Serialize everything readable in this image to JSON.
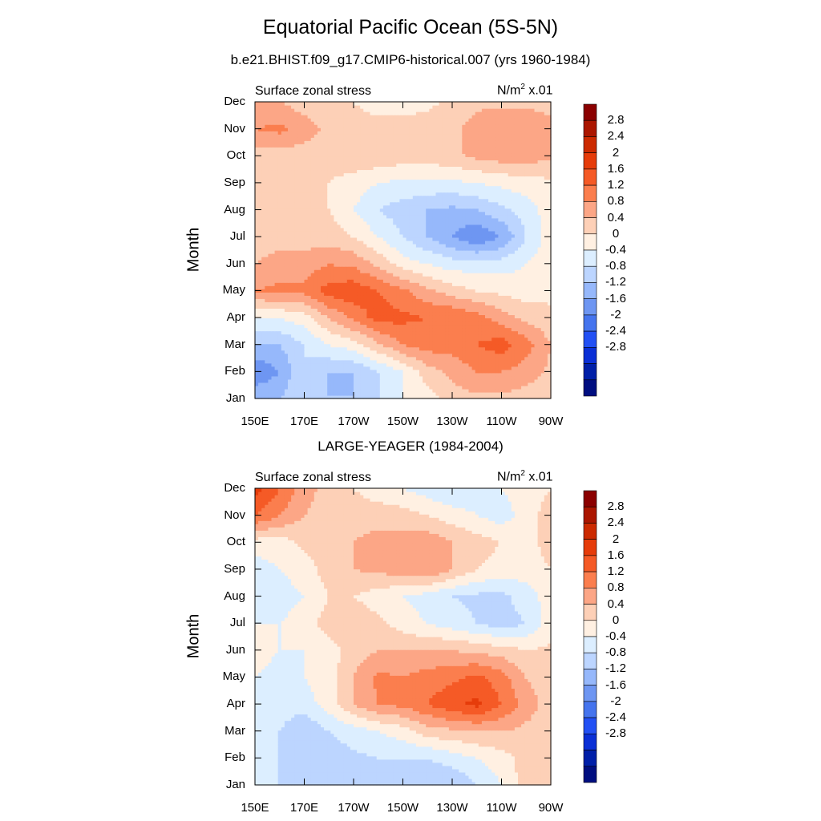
{
  "title": "Equatorial Pacific Ocean (5S-5N)",
  "chart_data": [
    {
      "type": "heatmap",
      "title": "b.e21.BHIST.f09_g17.CMIP6-historical.007 (yrs 1960-1984)",
      "left_label": "Surface zonal stress",
      "units_main": "N/m",
      "units_sup": "2",
      "units_scale": "x.01",
      "ylabel": "Month",
      "xlabel": "",
      "x_ticks": [
        "150E",
        "170E",
        "170W",
        "150W",
        "130W",
        "110W",
        "90W"
      ],
      "y_ticks": [
        "Jan",
        "Feb",
        "Mar",
        "Apr",
        "May",
        "Jun",
        "Jul",
        "Aug",
        "Sep",
        "Oct",
        "Nov",
        "Dec"
      ],
      "x": [
        150,
        160,
        170,
        180,
        190,
        200,
        210,
        220,
        230,
        240,
        250,
        260,
        270
      ],
      "y": [
        1,
        2,
        3,
        4,
        5,
        6,
        7,
        8,
        9,
        10,
        11,
        12
      ],
      "values": [
        [
          -1.2,
          -1.2,
          -0.8,
          -1.2,
          -1.2,
          -0.8,
          -0.4,
          -0.2,
          0.2,
          0.3,
          0.3,
          0.2,
          0.2
        ],
        [
          -2.0,
          -1.6,
          -0.8,
          -1.2,
          -1.2,
          -0.8,
          -0.4,
          0.2,
          0.5,
          0.8,
          0.8,
          0.6,
          0.3
        ],
        [
          -1.2,
          -1.2,
          -0.8,
          -0.4,
          -0.2,
          0.3,
          0.8,
          1.0,
          1.0,
          1.2,
          1.4,
          1.0,
          0.4
        ],
        [
          -0.4,
          -0.4,
          -0.2,
          0.4,
          0.9,
          1.4,
          1.3,
          1.2,
          1.2,
          1.0,
          0.6,
          0.3,
          0.1
        ],
        [
          0.8,
          0.9,
          0.9,
          1.4,
          1.5,
          1.2,
          0.9,
          0.5,
          0.2,
          0.0,
          -0.1,
          -0.2,
          -0.1
        ],
        [
          0.4,
          0.6,
          0.6,
          0.8,
          0.7,
          0.3,
          -0.2,
          -0.4,
          -0.6,
          -0.6,
          -0.6,
          -0.4,
          -0.1
        ],
        [
          0.2,
          0.2,
          0.2,
          0.2,
          0.0,
          -0.4,
          -0.8,
          -1.2,
          -1.6,
          -2.0,
          -1.6,
          -0.8,
          -0.2
        ],
        [
          0.0,
          0.2,
          0.2,
          0.0,
          -0.4,
          -0.8,
          -1.0,
          -1.2,
          -1.3,
          -1.2,
          -0.9,
          -0.6,
          -0.2
        ],
        [
          0.0,
          0.2,
          0.2,
          0.0,
          -0.2,
          -0.4,
          -0.5,
          -0.5,
          -0.5,
          -0.4,
          -0.3,
          -0.2,
          -0.1
        ],
        [
          0.2,
          0.2,
          0.2,
          0.2,
          0.3,
          0.3,
          0.2,
          0.2,
          0.3,
          0.5,
          0.6,
          0.6,
          0.5
        ],
        [
          0.8,
          0.9,
          0.6,
          0.3,
          0.2,
          0.2,
          0.2,
          0.2,
          0.3,
          0.6,
          0.8,
          0.8,
          0.6
        ],
        [
          0.4,
          0.4,
          0.2,
          0.1,
          0.0,
          -0.2,
          -0.2,
          -0.1,
          0.1,
          0.3,
          0.3,
          0.3,
          0.2
        ]
      ],
      "colorbar": {
        "labels": [
          "2.8",
          "2.4",
          "2",
          "1.6",
          "1.2",
          "0.8",
          "0.4",
          "0",
          "-0.4",
          "-0.8",
          "-1.2",
          "-1.6",
          "-2",
          "-2.4",
          "-2.8"
        ],
        "levels": [
          2.8,
          2.4,
          2.0,
          1.6,
          1.2,
          0.8,
          0.4,
          0.0,
          -0.4,
          -0.8,
          -1.2,
          -1.6,
          -2.0,
          -2.4,
          -2.8
        ],
        "colors": [
          "#8b0000",
          "#ab1600",
          "#cc2a00",
          "#e63c0a",
          "#f55a26",
          "#fb7e4e",
          "#fca686",
          "#fdd0b7",
          "#fff0e2",
          "#dceeff",
          "#bcd5ff",
          "#96b8fb",
          "#6e96f2",
          "#4574ee",
          "#2250f4",
          "#0a2fd6",
          "#001fa8",
          "#000e80"
        ]
      }
    },
    {
      "type": "heatmap",
      "title": "LARGE-YEAGER (1984-2004)",
      "left_label": "Surface zonal stress",
      "units_main": "N/m",
      "units_sup": "2",
      "units_scale": "x.01",
      "ylabel": "Month",
      "xlabel": "",
      "x_ticks": [
        "150E",
        "170E",
        "170W",
        "150W",
        "130W",
        "110W",
        "90W"
      ],
      "y_ticks": [
        "Jan",
        "Feb",
        "Mar",
        "Apr",
        "May",
        "Jun",
        "Jul",
        "Aug",
        "Sep",
        "Oct",
        "Nov",
        "Dec"
      ],
      "x": [
        150,
        160,
        170,
        180,
        190,
        200,
        210,
        220,
        230,
        240,
        250,
        260,
        270
      ],
      "y": [
        1,
        2,
        3,
        4,
        5,
        6,
        7,
        8,
        9,
        10,
        11,
        12
      ],
      "values": [
        [
          -0.4,
          -0.8,
          -0.8,
          -0.8,
          -1.0,
          -1.2,
          -1.2,
          -1.2,
          -1.2,
          -0.8,
          -0.4,
          0.2,
          0.2
        ],
        [
          -0.6,
          -0.8,
          -1.0,
          -1.0,
          -0.9,
          -0.8,
          -0.8,
          -0.8,
          -0.6,
          -0.4,
          -0.2,
          0.2,
          0.2
        ],
        [
          -0.6,
          -0.8,
          -1.2,
          -0.8,
          -0.6,
          -0.4,
          -0.2,
          0.2,
          0.3,
          0.4,
          0.4,
          0.3,
          0.2
        ],
        [
          -0.4,
          -0.6,
          -0.6,
          -0.2,
          0.4,
          0.8,
          0.9,
          1.2,
          1.5,
          1.7,
          1.2,
          0.6,
          0.2
        ],
        [
          -0.4,
          -0.6,
          -0.4,
          -0.2,
          0.4,
          0.9,
          0.8,
          1.0,
          1.1,
          1.3,
          1.0,
          0.4,
          0.2
        ],
        [
          -0.2,
          -0.4,
          -0.4,
          -0.2,
          0.2,
          0.4,
          0.4,
          0.4,
          0.4,
          0.3,
          0.2,
          0.0,
          0.1
        ],
        [
          -0.4,
          -0.4,
          -0.2,
          0.2,
          0.3,
          0.1,
          -0.2,
          -0.4,
          -0.6,
          -0.8,
          -1.0,
          -0.8,
          -0.2
        ],
        [
          -0.8,
          -0.6,
          -0.4,
          0.0,
          0.0,
          -0.2,
          -0.4,
          -0.6,
          -0.8,
          -0.9,
          -0.9,
          -0.6,
          -0.2
        ],
        [
          -0.6,
          -0.4,
          -0.2,
          0.2,
          0.4,
          0.5,
          0.6,
          0.8,
          0.4,
          0.0,
          -0.2,
          -0.2,
          0.0
        ],
        [
          -0.2,
          -0.2,
          0.1,
          0.2,
          0.4,
          0.6,
          0.6,
          0.7,
          0.4,
          0.2,
          0.0,
          -0.2,
          0.2
        ],
        [
          1.2,
          0.8,
          0.4,
          0.2,
          0.2,
          0.2,
          0.2,
          0.0,
          -0.2,
          -0.4,
          -0.6,
          -0.2,
          0.2
        ],
        [
          1.8,
          1.2,
          0.6,
          0.2,
          0.0,
          -0.2,
          -0.4,
          -0.6,
          -0.8,
          -0.6,
          -0.4,
          -0.2,
          0.0
        ]
      ],
      "colorbar": {
        "labels": [
          "2.8",
          "2.4",
          "2",
          "1.6",
          "1.2",
          "0.8",
          "0.4",
          "0",
          "-0.4",
          "-0.8",
          "-1.2",
          "-1.6",
          "-2",
          "-2.4",
          "-2.8"
        ],
        "levels": [
          2.8,
          2.4,
          2.0,
          1.6,
          1.2,
          0.8,
          0.4,
          0.0,
          -0.4,
          -0.8,
          -1.2,
          -1.6,
          -2.0,
          -2.4,
          -2.8
        ],
        "colors": [
          "#8b0000",
          "#ab1600",
          "#cc2a00",
          "#e63c0a",
          "#f55a26",
          "#fb7e4e",
          "#fca686",
          "#fdd0b7",
          "#fff0e2",
          "#dceeff",
          "#bcd5ff",
          "#96b8fb",
          "#6e96f2",
          "#4574ee",
          "#2250f4",
          "#0a2fd6",
          "#001fa8",
          "#000e80"
        ]
      }
    }
  ]
}
